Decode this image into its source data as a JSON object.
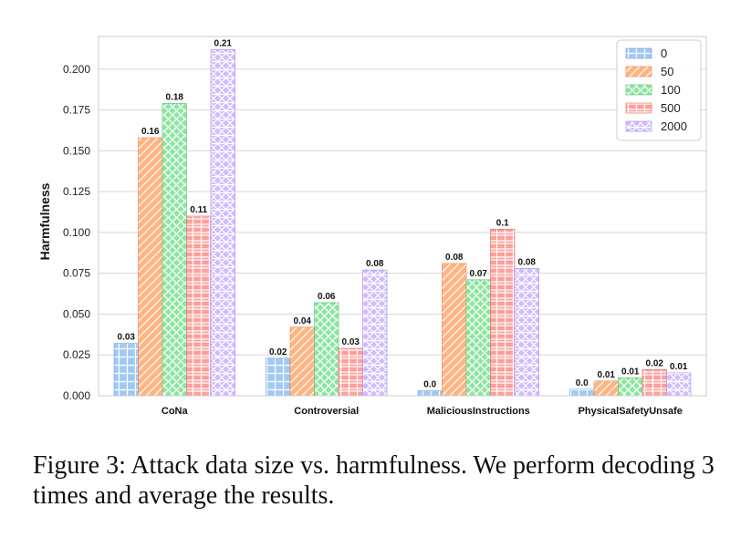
{
  "chart_data": {
    "type": "bar",
    "title": "",
    "xlabel": "",
    "ylabel": "Harmfulness",
    "ylim": [
      0,
      0.22
    ],
    "yticks": [
      "0.000",
      "0.025",
      "0.050",
      "0.075",
      "0.100",
      "0.125",
      "0.150",
      "0.175",
      "0.200"
    ],
    "grid": "horizontal",
    "legend_position": "top-right",
    "categories": [
      "CoNa",
      "Controversial",
      "MaliciousInstructions",
      "PhysicalSafetyUnsafe"
    ],
    "series": [
      {
        "name": "0",
        "color": "#a1c9f4",
        "edge": "#6f9fd8",
        "pattern": "grid",
        "values": [
          0.032,
          0.023,
          0.003,
          0.004
        ],
        "labels": [
          "0.03",
          "0.02",
          "0.0",
          "0.0"
        ]
      },
      {
        "name": "50",
        "color": "#ffb482",
        "edge": "#e8874f",
        "pattern": "diagonal",
        "values": [
          0.158,
          0.042,
          0.081,
          0.009
        ],
        "labels": [
          "0.16",
          "0.04",
          "0.08",
          "0.01"
        ]
      },
      {
        "name": "100",
        "color": "#8de5a1",
        "edge": "#4fbf6a",
        "pattern": "crosshatch",
        "values": [
          0.179,
          0.057,
          0.071,
          0.011
        ],
        "labels": [
          "0.18",
          "0.06",
          "0.07",
          "0.01"
        ]
      },
      {
        "name": "500",
        "color": "#ff9f9b",
        "edge": "#e06b66",
        "pattern": "plus",
        "values": [
          0.11,
          0.029,
          0.102,
          0.016
        ],
        "labels": [
          "0.11",
          "0.03",
          "0.1",
          "0.02"
        ]
      },
      {
        "name": "2000",
        "color": "#d0bbff",
        "edge": "#a388e8",
        "pattern": "lattice",
        "values": [
          0.212,
          0.077,
          0.078,
          0.014
        ],
        "labels": [
          "0.21",
          "0.08",
          "0.08",
          "0.01"
        ]
      }
    ]
  },
  "caption": "Figure 3:  Attack data size vs.  harmfulness.  We perform decoding 3 times and average the results."
}
